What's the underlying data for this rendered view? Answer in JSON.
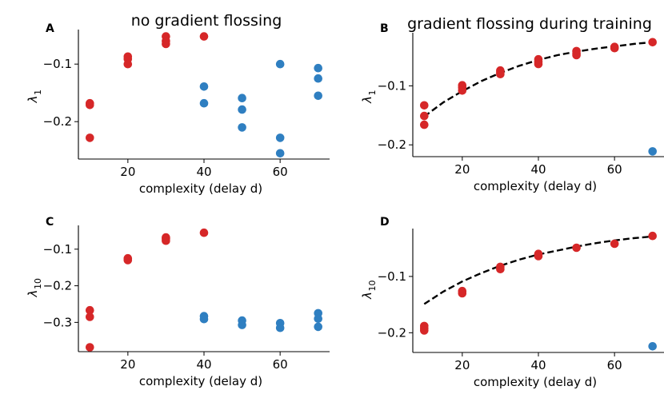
{
  "colors": {
    "red": "#d62728",
    "blue": "#2f7fc1",
    "fit": "#000000"
  },
  "chart_data": [
    {
      "type": "scatter",
      "panel": "A",
      "title": "no gradient flossing",
      "xlabel": "complexity (delay d)",
      "ylabel_main": "λ",
      "ylabel_sub": "1",
      "xlim": [
        7,
        73
      ],
      "ylim": [
        -0.265,
        -0.04
      ],
      "xticks": [
        20,
        40,
        60
      ],
      "yticks": [
        -0.1,
        -0.2
      ],
      "ytick_labels": [
        "−0.1",
        "−0.2"
      ],
      "series": [
        {
          "name": "red",
          "color": "red",
          "points": [
            [
              10,
              -0.168
            ],
            [
              10,
              -0.171
            ],
            [
              10,
              -0.228
            ],
            [
              20,
              -0.087
            ],
            [
              20,
              -0.091
            ],
            [
              20,
              -0.1
            ],
            [
              30,
              -0.052
            ],
            [
              30,
              -0.06
            ],
            [
              30,
              -0.065
            ],
            [
              40,
              -0.052
            ]
          ]
        },
        {
          "name": "blue",
          "color": "blue",
          "points": [
            [
              40,
              -0.139
            ],
            [
              40,
              -0.168
            ],
            [
              50,
              -0.159
            ],
            [
              50,
              -0.179
            ],
            [
              50,
              -0.21
            ],
            [
              60,
              -0.1
            ],
            [
              60,
              -0.228
            ],
            [
              60,
              -0.255
            ],
            [
              70,
              -0.107
            ],
            [
              70,
              -0.125
            ],
            [
              70,
              -0.155
            ]
          ]
        }
      ]
    },
    {
      "type": "scatter",
      "panel": "B",
      "title": "gradient flossing during training",
      "xlabel": "complexity (delay d)",
      "ylabel_main": "λ",
      "ylabel_sub": "1",
      "xlim": [
        7,
        73
      ],
      "ylim": [
        -0.22,
        -0.01
      ],
      "xticks": [
        20,
        40,
        60
      ],
      "yticks": [
        -0.1,
        -0.2
      ],
      "ytick_labels": [
        "−0.1",
        "−0.2"
      ],
      "fit": {
        "x": [
          10,
          15,
          20,
          25,
          30,
          35,
          40,
          45,
          50,
          55,
          60,
          65,
          70
        ],
        "y": [
          -0.152,
          -0.128,
          -0.109,
          -0.092,
          -0.078,
          -0.066,
          -0.056,
          -0.048,
          -0.042,
          -0.037,
          -0.033,
          -0.029,
          -0.026
        ]
      },
      "series": [
        {
          "name": "red",
          "color": "red",
          "points": [
            [
              10,
              -0.133
            ],
            [
              10,
              -0.151
            ],
            [
              10,
              -0.166
            ],
            [
              20,
              -0.099
            ],
            [
              20,
              -0.103
            ],
            [
              20,
              -0.108
            ],
            [
              30,
              -0.074
            ],
            [
              30,
              -0.077
            ],
            [
              30,
              -0.08
            ],
            [
              40,
              -0.055
            ],
            [
              40,
              -0.059
            ],
            [
              40,
              -0.063
            ],
            [
              50,
              -0.041
            ],
            [
              50,
              -0.045
            ],
            [
              50,
              -0.048
            ],
            [
              60,
              -0.034
            ],
            [
              60,
              -0.036
            ],
            [
              70,
              -0.026
            ]
          ]
        },
        {
          "name": "blue",
          "color": "blue",
          "points": [
            [
              70,
              -0.211
            ]
          ]
        }
      ]
    },
    {
      "type": "scatter",
      "panel": "C",
      "title": "",
      "xlabel": "complexity (delay d)",
      "ylabel_main": "λ",
      "ylabel_sub": "10",
      "xlim": [
        7,
        73
      ],
      "ylim": [
        -0.38,
        -0.035
      ],
      "xticks": [
        20,
        40,
        60
      ],
      "yticks": [
        -0.1,
        -0.2,
        -0.3
      ],
      "ytick_labels": [
        "−0.1",
        "−0.2",
        "−0.3"
      ],
      "series": [
        {
          "name": "red",
          "color": "red",
          "points": [
            [
              10,
              -0.267
            ],
            [
              10,
              -0.285
            ],
            [
              10,
              -0.368
            ],
            [
              20,
              -0.125
            ],
            [
              20,
              -0.13
            ],
            [
              30,
              -0.068
            ],
            [
              30,
              -0.072
            ],
            [
              30,
              -0.077
            ],
            [
              40,
              -0.055
            ]
          ]
        },
        {
          "name": "blue",
          "color": "blue",
          "points": [
            [
              40,
              -0.283
            ],
            [
              40,
              -0.291
            ],
            [
              50,
              -0.295
            ],
            [
              50,
              -0.307
            ],
            [
              60,
              -0.302
            ],
            [
              60,
              -0.315
            ],
            [
              70,
              -0.275
            ],
            [
              70,
              -0.29
            ],
            [
              70,
              -0.312
            ]
          ]
        }
      ]
    },
    {
      "type": "scatter",
      "panel": "D",
      "title": "",
      "xlabel": "complexity (delay d)",
      "ylabel_main": "λ",
      "ylabel_sub": "10",
      "xlim": [
        7,
        73
      ],
      "ylim": [
        -0.235,
        -0.015
      ],
      "xticks": [
        20,
        40,
        60
      ],
      "yticks": [
        -0.1,
        -0.2
      ],
      "ytick_labels": [
        "−0.1",
        "−0.2"
      ],
      "fit": {
        "x": [
          10,
          15,
          20,
          25,
          30,
          35,
          40,
          45,
          50,
          55,
          60,
          65,
          70
        ],
        "y": [
          -0.149,
          -0.127,
          -0.109,
          -0.094,
          -0.081,
          -0.07,
          -0.061,
          -0.054,
          -0.047,
          -0.041,
          -0.036,
          -0.032,
          -0.029
        ]
      },
      "series": [
        {
          "name": "red",
          "color": "red",
          "points": [
            [
              10,
              -0.188
            ],
            [
              10,
              -0.192
            ],
            [
              10,
              -0.196
            ],
            [
              20,
              -0.126
            ],
            [
              20,
              -0.13
            ],
            [
              30,
              -0.083
            ],
            [
              30,
              -0.087
            ],
            [
              40,
              -0.06
            ],
            [
              40,
              -0.064
            ],
            [
              50,
              -0.049
            ],
            [
              60,
              -0.042
            ],
            [
              70,
              -0.028
            ]
          ]
        },
        {
          "name": "blue",
          "color": "blue",
          "points": [
            [
              70,
              -0.224
            ]
          ]
        }
      ]
    }
  ]
}
